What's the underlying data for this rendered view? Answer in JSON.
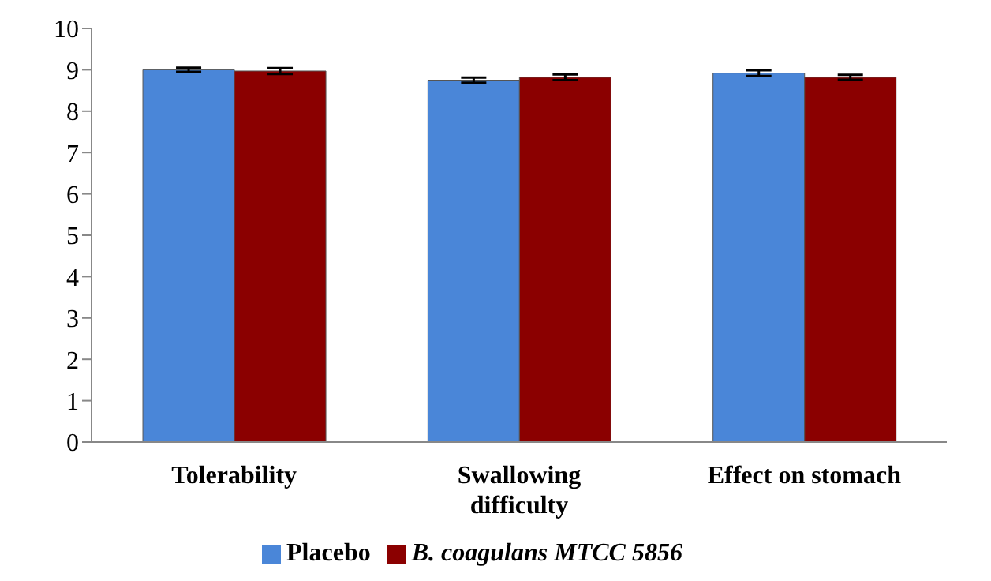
{
  "chart_data": {
    "type": "bar",
    "categories": [
      "Tolerability",
      "Swallowing difficulty",
      "Effect on stomach"
    ],
    "series": [
      {
        "name": "Placebo",
        "color": "#4a86d8",
        "values": [
          9.0,
          8.75,
          8.92
        ],
        "errors": [
          0.05,
          0.06,
          0.07
        ]
      },
      {
        "name": "B. coagulans MTCC 5856",
        "color": "#8b0000",
        "values": [
          8.97,
          8.82,
          8.82
        ],
        "errors": [
          0.07,
          0.07,
          0.06
        ]
      }
    ],
    "ylim": [
      0,
      10
    ],
    "yticks": [
      0,
      1,
      2,
      3,
      4,
      5,
      6,
      7,
      8,
      9,
      10
    ],
    "grid": false,
    "legend": "bottom"
  }
}
